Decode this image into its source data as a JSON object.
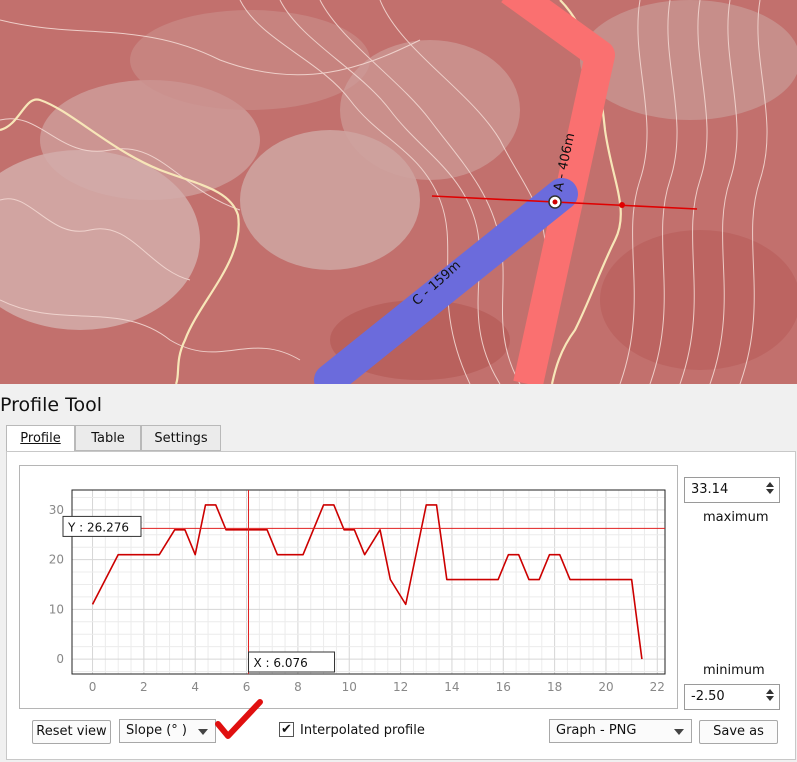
{
  "map": {
    "route_labels": [
      "A - 406m",
      "C - 159m"
    ]
  },
  "panel": {
    "title": "Profile Tool",
    "tabs": [
      {
        "label": "Profile",
        "active": true
      },
      {
        "label": "Table"
      },
      {
        "label": "Settings"
      }
    ]
  },
  "chart_data": {
    "type": "line",
    "x_ticks": [
      "0",
      "2",
      "4",
      "6",
      "8",
      "10",
      "12",
      "14",
      "16",
      "18",
      "20",
      "22"
    ],
    "y_ticks": [
      "0",
      "10",
      "20",
      "30"
    ],
    "xlim": [
      -0.8,
      22.3
    ],
    "ylim": [
      -3,
      34
    ],
    "grid": true,
    "line_color": "#cc0000",
    "series": [
      {
        "x": [
          0,
          1,
          2,
          2.6,
          3.2,
          3.6,
          4,
          4.4,
          4.8,
          5.2,
          5.6,
          6,
          6.4,
          6.8,
          7.2,
          7.6,
          8.2,
          8.6,
          9,
          9.4,
          9.8,
          10.2,
          10.6,
          11.2,
          11.6,
          12.2,
          12.6,
          13,
          13.4,
          13.8,
          14.2,
          15,
          15.8,
          16.2,
          16.6,
          17,
          17.4,
          17.8,
          18.2,
          18.6,
          19,
          19.4,
          19.8,
          20.2,
          20.6,
          21,
          21.4
        ],
        "y": [
          11,
          21,
          21,
          21,
          26,
          26,
          21,
          31,
          31,
          26,
          26,
          26,
          26,
          26,
          21,
          21,
          21,
          26,
          31,
          31,
          26,
          26,
          21,
          26,
          16,
          11,
          21,
          31,
          31,
          16,
          16,
          16,
          16,
          21,
          21,
          16,
          16,
          21,
          21,
          16,
          16,
          16,
          16,
          16,
          16,
          16,
          0
        ]
      }
    ],
    "crosshair": {
      "x_label": "X : 6.076",
      "y_label": "Y : 26.276",
      "x": 6.076,
      "y": 26.276
    }
  },
  "controls": {
    "maximum_value": "33.14",
    "maximum_label": "maximum",
    "minimum_value": "-2.50",
    "minimum_label": "minimum",
    "reset_view": "Reset view",
    "slope_combo": "Slope (° )",
    "interpolated_label": "Interpolated profile",
    "interpolated_checked": true,
    "export_combo": "Graph - PNG",
    "save_as": "Save as"
  }
}
